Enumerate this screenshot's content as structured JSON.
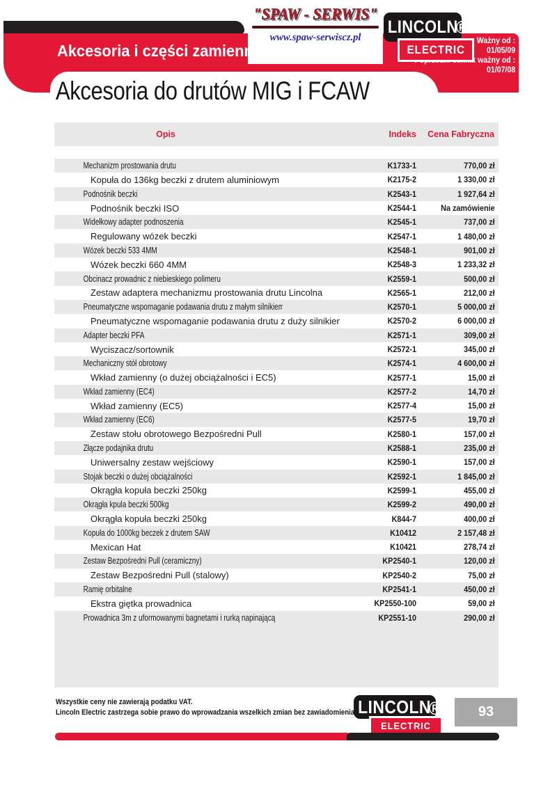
{
  "branding": {
    "spaw": {
      "name": "\"SPAW - SERWIS\"",
      "url": "www.spaw-serwiscz.pl"
    },
    "lincoln": {
      "line1": "LINCOLN",
      "line2": "ELECTRIC",
      "registered": "®"
    }
  },
  "header": {
    "section_title": "Akcesoria i części zamienne",
    "validity": {
      "label1": "Ważny od :",
      "date1": "01/05/09",
      "label2": "Poprzedni cennik ważny od :",
      "date2": "01/07/08"
    },
    "page_title": "Akcesoria do drutów MIG i FCAW"
  },
  "table": {
    "columns": {
      "description": "Opis",
      "index": "Indeks",
      "price": "Cena Fabryczna"
    },
    "rows": [
      {
        "description": "Mechanizm prostowania drutu",
        "index": "K1733-1",
        "price": "770,00 zł"
      },
      {
        "description": "Kopuła do 136kg beczki z drutem aluminiowym",
        "index": "K2175-2",
        "price": "1 330,00 zł"
      },
      {
        "description": "Podnośnik beczki",
        "index": "K2543-1",
        "price": "1 927,64 zł"
      },
      {
        "description": "Podnośnik beczki ISO",
        "index": "K2544-1",
        "price": "Na zamówienie"
      },
      {
        "description": "Widełkowy adapter podnoszenia",
        "index": "K2545-1",
        "price": "737,00 zł"
      },
      {
        "description": "Regulowany wózek beczki",
        "index": "K2547-1",
        "price": "1 480,00 zł"
      },
      {
        "description": "Wózek beczki 533 4MM",
        "index": "K2548-1",
        "price": "901,00 zł"
      },
      {
        "description": "Wózek beczki 660 4MM",
        "index": "K2548-3",
        "price": "1 233,32 zł"
      },
      {
        "description": "Obcinacz prowadnic z niebieskiego polimeru",
        "index": "K2559-1",
        "price": "500,00 zł"
      },
      {
        "description": "Zestaw adaptera mechanizmu prostowania drutu Lincolna",
        "index": "K2565-1",
        "price": "212,00 zł"
      },
      {
        "description": "Pneumatyczne wspomaganie podawania drutu z małym silnikiem",
        "index": "K2570-1",
        "price": "5 000,00 zł"
      },
      {
        "description": "Pneumatyczne wspomaganie podawania drutu z duży silnikiem",
        "index": "K2570-2",
        "price": "6 000,00 zł"
      },
      {
        "description": "Adapter beczki PFA",
        "index": "K2571-1",
        "price": "309,00 zł"
      },
      {
        "description": "Wyciszacz/sortownik",
        "index": "K2572-1",
        "price": "345,00 zł"
      },
      {
        "description": "Mechaniczny stół obrotowy",
        "index": "K2574-1",
        "price": "4 600,00 zł"
      },
      {
        "description": "Wkład zamienny (o dużej obciążalności i EC5)",
        "index": "K2577-1",
        "price": "15,00 zł"
      },
      {
        "description": "Wkład zamienny (EC4)",
        "index": "K2577-2",
        "price": "14,70 zł"
      },
      {
        "description": "Wkład zamienny (EC5)",
        "index": "K2577-4",
        "price": "15,00 zł"
      },
      {
        "description": "Wkład zamienny (EC6)",
        "index": "K2577-5",
        "price": "19,70 zł"
      },
      {
        "description": "Zestaw stołu obrotowego Bezpośredni Pull",
        "index": "K2580-1",
        "price": "157,00 zł"
      },
      {
        "description": "Złącze podajnika drutu",
        "index": "K2588-1",
        "price": "235,00 zł"
      },
      {
        "description": "Uniwersalny zestaw wejściowy",
        "index": "K2590-1",
        "price": "157,00 zł"
      },
      {
        "description": "Stojak beczki o dużej obciążalności",
        "index": "K2592-1",
        "price": "1 845,00 zł"
      },
      {
        "description": "Okrągła kopuła beczki 250kg",
        "index": "K2599-1",
        "price": "455,00 zł"
      },
      {
        "description": "Okrągła kpula beczki 500kg",
        "index": "K2599-2",
        "price": "490,00 zł"
      },
      {
        "description": "Okrągła kopuła beczki 250kg",
        "index": "K844-7",
        "price": "400,00 zł"
      },
      {
        "description": "Kopuła do 1000kg beczek z drutem SAW",
        "index": "K10412",
        "price": "2 157,48 zł"
      },
      {
        "description": "Mexican Hat",
        "index": "K10421",
        "price": "278,74 zł"
      },
      {
        "description": "Zestaw Bezpośredni Pull (ceramiczny)",
        "index": "KP2540-1",
        "price": "120,00 zł"
      },
      {
        "description": "Zestaw Bezpośredni Pull (stalowy)",
        "index": "KP2540-2",
        "price": "75,00 zł"
      },
      {
        "description": "Ramię orbitalne",
        "index": "KP2541-1",
        "price": "450,00 zł"
      },
      {
        "description": "Ekstra giętka prowadnica",
        "index": "KP2550-100",
        "price": "59,00 zł"
      },
      {
        "description": "Prowadnica 3m z uformowanymi bagnetami i rurką napinającą",
        "index": "KP2551-10",
        "price": "290,00 zł"
      }
    ]
  },
  "footer": {
    "note1": "Wszystkie ceny nie zawierają podatku VAT.",
    "note2": "Lincoln Electric zastrzega sobie prawo do wprowadzania wszelkich zmian bez zawiadomienia.",
    "page_number": "93"
  },
  "colors": {
    "brand_red": "#e31837",
    "bar_black": "#231f20",
    "row_gray": "#e8e8e8",
    "page_number_gray": "#a8a8a8",
    "url_blue": "#2929a8"
  }
}
